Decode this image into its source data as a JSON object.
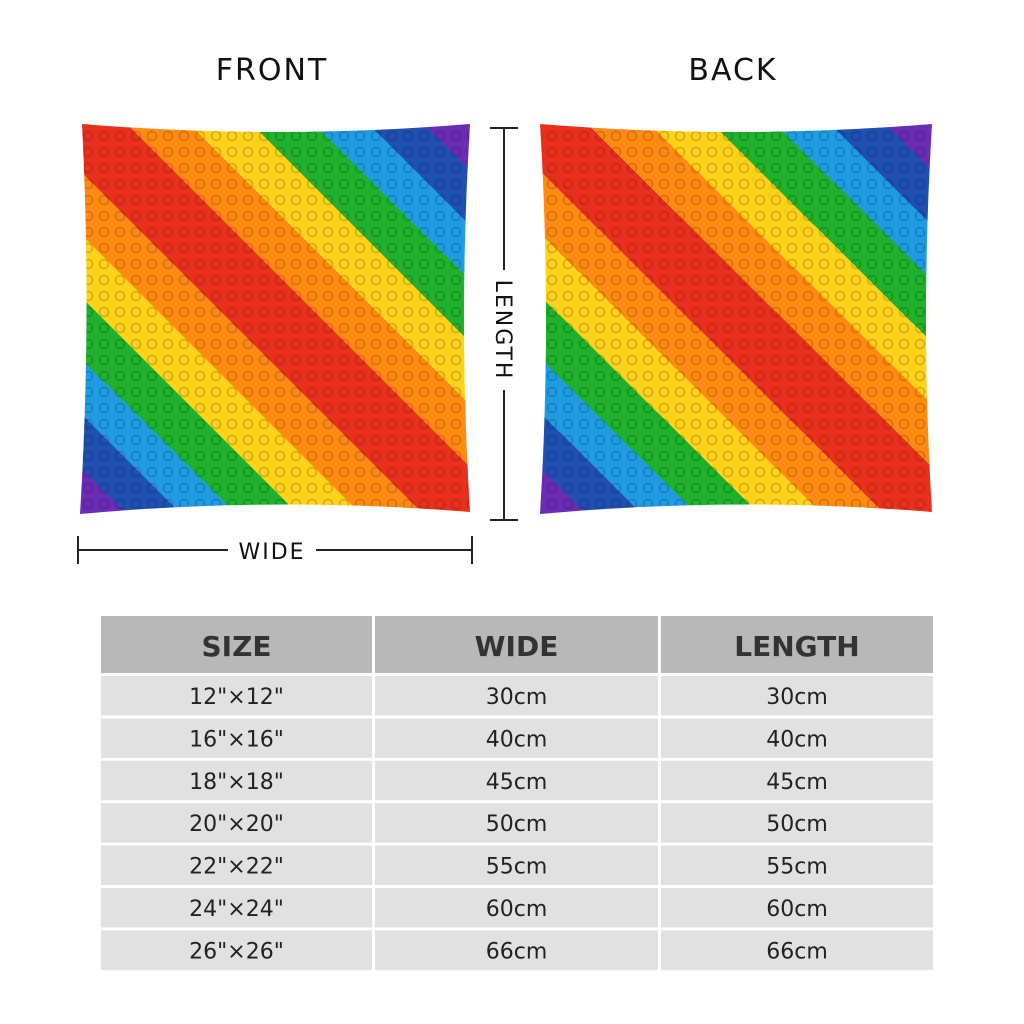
{
  "labels": {
    "front": "FRONT",
    "back": "BACK",
    "length": "LENGTH",
    "wide": "WIDE"
  },
  "table": {
    "header": [
      "SIZE",
      "WIDE",
      "LENGTH"
    ],
    "rows": [
      [
        "12\"×12\"",
        "30cm",
        "30cm"
      ],
      [
        "16\"×16\"",
        "40cm",
        "40cm"
      ],
      [
        "18\"×18\"",
        "45cm",
        "45cm"
      ],
      [
        "20\"×20\"",
        "50cm",
        "50cm"
      ],
      [
        "22\"×22\"",
        "55cm",
        "55cm"
      ],
      [
        "24\"×24\"",
        "60cm",
        "60cm"
      ],
      [
        "26\"×26\"",
        "66cm",
        "66cm"
      ]
    ]
  }
}
